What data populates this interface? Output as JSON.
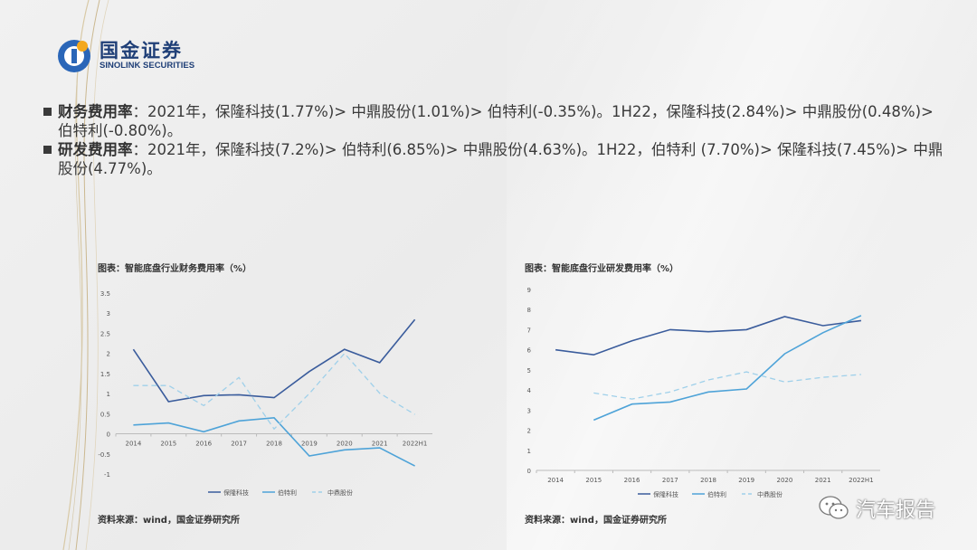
{
  "logo": {
    "name_cn": "国金证券",
    "name_en": "SINOLINK SECURITIES"
  },
  "bullets": [
    {
      "label": "财务费用率",
      "text": "：2021年，保隆科技(1.77%)> 中鼎股份(1.01%)> 伯特利(-0.35%)。1H22，保隆科技(2.84%)> 中鼎股份(0.48%)> 伯特利(-0.80%)。"
    },
    {
      "label": "研发费用率",
      "text": "：2021年，保隆科技(7.2%)> 伯特利(6.85%)> 中鼎股份(4.63%)。1H22，伯特利 (7.70%)> 保隆科技(7.45%)> 中鼎股份(4.77%)。"
    }
  ],
  "left_chart": {
    "title": "图表：智能底盘行业财务费用率（%）",
    "source": "资料来源：wind，国金证券研究所"
  },
  "right_chart": {
    "title": "图表：智能底盘行业研发费用率（%）",
    "source": "资料来源：wind，国金证券研究所"
  },
  "watermark": {
    "text": "汽车报告"
  },
  "colors": {
    "series1": "#3a5c9c",
    "series2": "#4ea3d8",
    "series3": "#9fd0ea",
    "brand": "#1f3f77"
  },
  "chart_data": [
    {
      "type": "line",
      "title": "图表：智能底盘行业财务费用率（%）",
      "categories": [
        "2014",
        "2015",
        "2016",
        "2017",
        "2018",
        "2019",
        "2020",
        "2021",
        "2022H1"
      ],
      "ylim": [
        -1,
        3.5
      ],
      "yticks": [
        "-1",
        "-0.5",
        "0",
        "0.5",
        "1",
        "1.5",
        "2",
        "2.5",
        "3",
        "3.5"
      ],
      "legend_position": "bottom",
      "series": [
        {
          "name": "保隆科技",
          "style": "solid",
          "color": "#3a5c9c",
          "values": [
            2.1,
            0.8,
            0.95,
            0.97,
            0.9,
            1.55,
            2.1,
            1.77,
            2.84
          ]
        },
        {
          "name": "伯特利",
          "style": "solid",
          "color": "#4ea3d8",
          "values": [
            0.22,
            0.27,
            0.05,
            0.32,
            0.4,
            -0.55,
            -0.4,
            -0.35,
            -0.8
          ]
        },
        {
          "name": "中鼎股份",
          "style": "dashed",
          "color": "#9fd0ea",
          "values": [
            1.2,
            1.2,
            0.7,
            1.4,
            0.12,
            1.0,
            2.0,
            1.01,
            0.48
          ]
        }
      ]
    },
    {
      "type": "line",
      "title": "图表：智能底盘行业研发费用率（%）",
      "categories": [
        "2014",
        "2015",
        "2016",
        "2017",
        "2018",
        "2019",
        "2020",
        "2021",
        "2022H1"
      ],
      "ylim": [
        0,
        9
      ],
      "yticks": [
        "0",
        "1",
        "2",
        "3",
        "4",
        "5",
        "6",
        "7",
        "8",
        "9"
      ],
      "legend_position": "bottom",
      "series": [
        {
          "name": "保隆科技",
          "style": "solid",
          "color": "#3a5c9c",
          "values": [
            6.0,
            5.75,
            6.45,
            7.0,
            6.9,
            7.0,
            7.65,
            7.2,
            7.45
          ]
        },
        {
          "name": "伯特利",
          "style": "solid",
          "color": "#4ea3d8",
          "values": [
            null,
            2.5,
            3.3,
            3.4,
            3.9,
            4.05,
            5.8,
            6.85,
            7.7
          ]
        },
        {
          "name": "中鼎股份",
          "style": "dashed",
          "color": "#9fd0ea",
          "values": [
            null,
            3.85,
            3.55,
            3.9,
            4.5,
            4.9,
            4.4,
            4.63,
            4.77
          ]
        }
      ]
    }
  ]
}
